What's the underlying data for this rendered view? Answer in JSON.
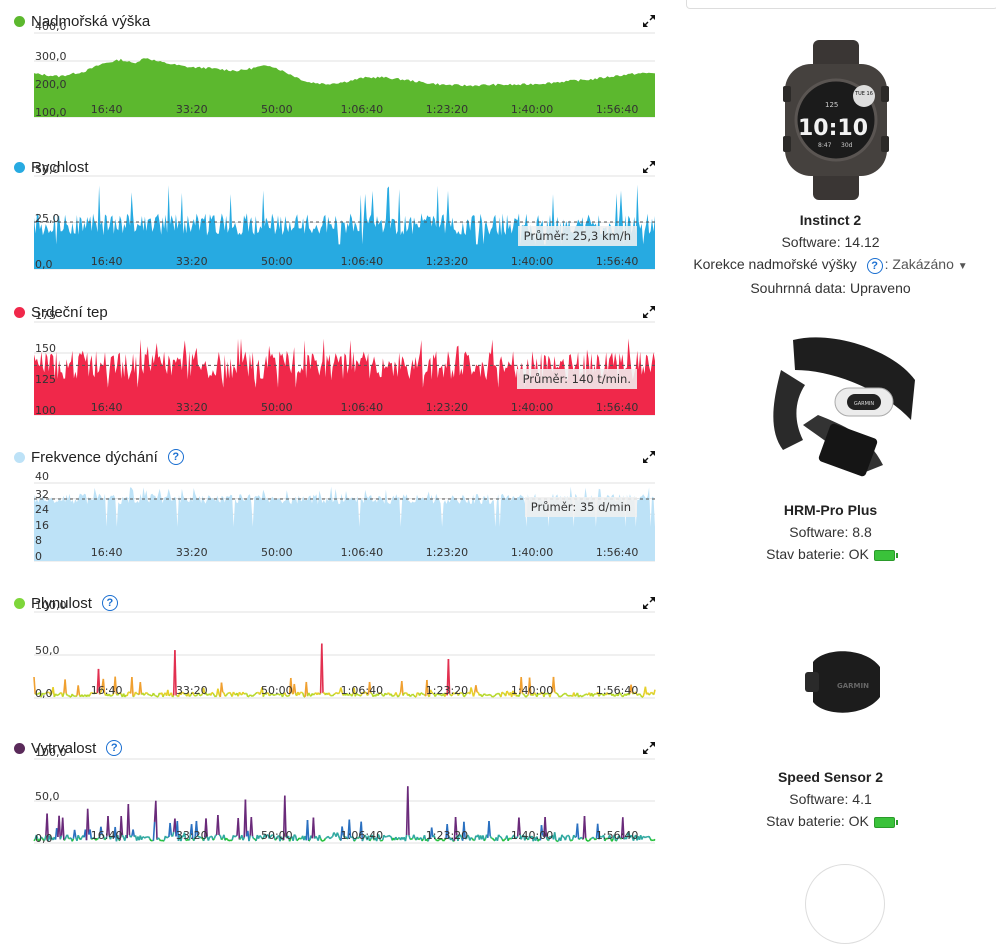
{
  "charts": [
    {
      "key": "elev",
      "title": "Nadmořská výška",
      "color": "#5cb82e",
      "help": false,
      "ylabels": [
        "400,0",
        "300,0",
        "200,0",
        "100,0"
      ],
      "ymin": 100,
      "ymax": 400,
      "xlabels": [
        "16:40",
        "33:20",
        "50:00",
        "1:06:40",
        "1:23:20",
        "1:40:00",
        "1:56:40"
      ],
      "avg": null,
      "profile": [
        [
          0,
          255
        ],
        [
          0.04,
          245
        ],
        [
          0.08,
          262
        ],
        [
          0.11,
          290
        ],
        [
          0.14,
          305
        ],
        [
          0.16,
          292
        ],
        [
          0.18,
          312
        ],
        [
          0.2,
          298
        ],
        [
          0.23,
          285
        ],
        [
          0.25,
          278
        ],
        [
          0.28,
          275
        ],
        [
          0.3,
          270
        ],
        [
          0.33,
          265
        ],
        [
          0.36,
          278
        ],
        [
          0.38,
          285
        ],
        [
          0.41,
          255
        ],
        [
          0.44,
          225
        ],
        [
          0.47,
          218
        ],
        [
          0.5,
          225
        ],
        [
          0.53,
          240
        ],
        [
          0.56,
          242
        ],
        [
          0.6,
          232
        ],
        [
          0.63,
          222
        ],
        [
          0.66,
          215
        ],
        [
          0.7,
          212
        ],
        [
          0.74,
          215
        ],
        [
          0.78,
          215
        ],
        [
          0.82,
          220
        ],
        [
          0.86,
          228
        ],
        [
          0.9,
          235
        ],
        [
          0.94,
          248
        ],
        [
          0.97,
          255
        ],
        [
          1,
          258
        ]
      ]
    },
    {
      "key": "speed",
      "title": "Rychlost",
      "color": "#27aae1",
      "help": false,
      "ylabels": [
        "50,0",
        "25,0",
        "0,0"
      ],
      "ymin": 0,
      "ymax": 50,
      "xlabels": [
        "16:40",
        "33:20",
        "50:00",
        "1:06:40",
        "1:23:20",
        "1:40:00",
        "1:56:40"
      ],
      "avg": {
        "label": "Průměr: 25,3 km/h",
        "value": 25.3
      },
      "base": 24,
      "amp": 6,
      "spike": 46
    },
    {
      "key": "hr",
      "title": "Srdeční tep",
      "color": "#f0284a",
      "help": false,
      "ylabels": [
        "175",
        "150",
        "125",
        "100"
      ],
      "ymin": 100,
      "ymax": 175,
      "xlabels": [
        "16:40",
        "33:20",
        "50:00",
        "1:06:40",
        "1:23:20",
        "1:40:00",
        "1:56:40"
      ],
      "avg": {
        "label": "Průměr: 140 t/min.",
        "value": 140
      },
      "base": 140,
      "amp": 12,
      "spike": 162
    },
    {
      "key": "resp",
      "title": "Frekvence dýchání",
      "color": "#bde2f7",
      "help": true,
      "ylabels": [
        "40",
        "32",
        "24",
        "16",
        "8",
        "0"
      ],
      "ymin": 0,
      "ymax": 44,
      "xlabels": [
        "16:40",
        "33:20",
        "50:00",
        "1:06:40",
        "1:23:20",
        "1:40:00",
        "1:56:40"
      ],
      "avg": {
        "label": "Průměr: 35 d/min",
        "value": 35
      },
      "base": 35,
      "amp": 3,
      "spike": 42
    },
    {
      "key": "flow",
      "title": "Plynulost",
      "color": "#7ed63a",
      "help": true,
      "ylabels": [
        "100,0",
        "50,0",
        "0,0"
      ],
      "ymin": 0,
      "ymax": 100,
      "xlabels": [
        "16:40",
        "33:20",
        "50:00",
        "1:06:40",
        "1:23:20",
        "1:40:00",
        "1:56:40"
      ],
      "avg": null
    },
    {
      "key": "grit",
      "title": "Vytrvalost",
      "color": "#5a2a5a",
      "help": true,
      "ylabels": [
        "100,0",
        "50,0",
        "0,0"
      ],
      "ymin": 0,
      "ymax": 100,
      "xlabels": [
        "16:40",
        "33:20",
        "50:00",
        "1:06:40",
        "1:23:20",
        "1:40:00",
        "1:56:40"
      ],
      "avg": null
    }
  ],
  "devices": {
    "watch": {
      "name": "Instinct 2",
      "software": "Software: 14.12",
      "correction_label": "Korekce nadmořské výšky",
      "correction_value": "Zakázáno",
      "summary": "Souhrnná data: Upraveno",
      "watch_time": "10:10",
      "watch_date": "TUE 16",
      "watch_top": "125",
      "watch_bottom": "8:47",
      "watch_days": "30d"
    },
    "hrm": {
      "name": "HRM-Pro Plus",
      "software": "Software: 8.8",
      "battery": "Stav baterie: OK",
      "brand": "GARMIN"
    },
    "speed": {
      "name": "Speed Sensor 2",
      "software": "Software: 4.1",
      "battery": "Stav baterie: OK",
      "brand": "GARMIN"
    }
  },
  "colors": {
    "grid": "#e2e2e2",
    "axis": "#999",
    "battery": "#3ac23a",
    "link": "#1a6fd1"
  }
}
